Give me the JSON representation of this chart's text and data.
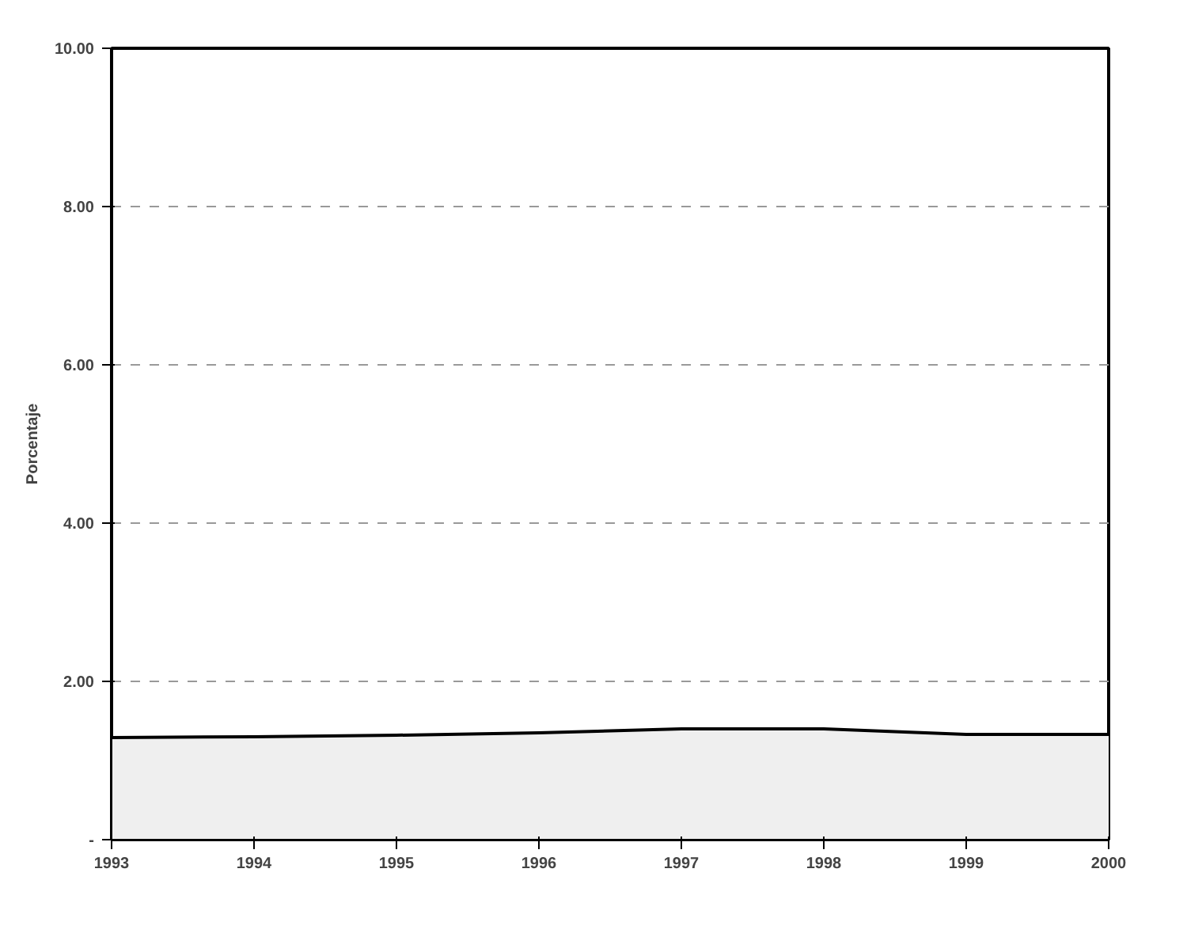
{
  "chart_data": {
    "type": "area",
    "ylabel": "Porcentaje",
    "x": [
      1993,
      1994,
      1995,
      1996,
      1997,
      1998,
      1999,
      2000
    ],
    "series": [
      {
        "color": "#efefef",
        "values": [
          1.29,
          1.3,
          1.32,
          1.35,
          1.4,
          1.4,
          1.33,
          1.33
        ]
      }
    ],
    "xlim": [
      1993,
      2000
    ],
    "xticks": [
      1993,
      1994,
      1995,
      1996,
      1997,
      1998,
      1999,
      2000
    ],
    "ylim": [
      0,
      10
    ],
    "yticks": [
      {
        "value": 0,
        "label": "-"
      },
      {
        "value": 2,
        "label": "2.00"
      },
      {
        "value": 4,
        "label": "4.00"
      },
      {
        "value": 6,
        "label": "6.00"
      },
      {
        "value": 8,
        "label": "8.00"
      },
      {
        "value": 10,
        "label": "10.00"
      }
    ],
    "grid": "y"
  }
}
